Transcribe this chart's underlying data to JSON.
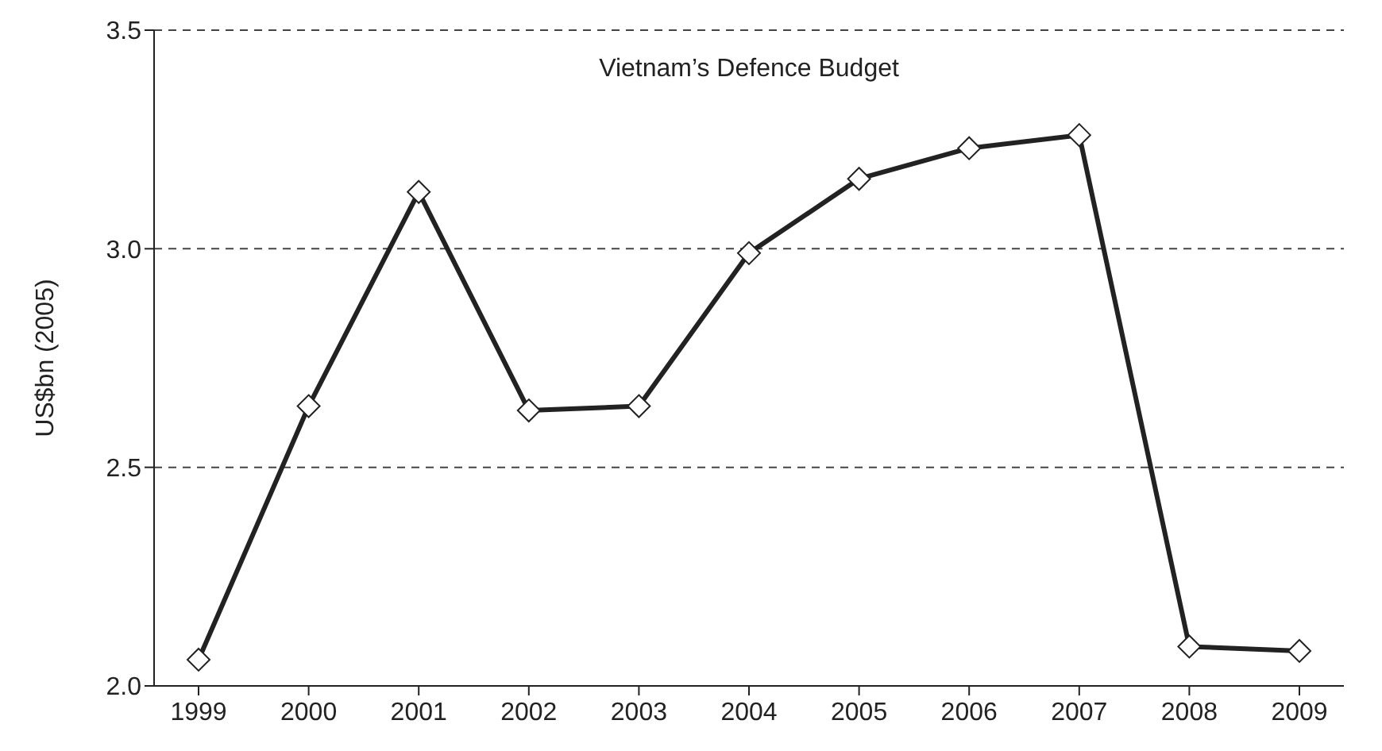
{
  "chart_data": {
    "type": "line",
    "title": "Vietnam’s Defence Budget",
    "ylabel": "US$bn (2005)",
    "categories": [
      "1999",
      "2000",
      "2001",
      "2002",
      "2003",
      "2004",
      "2005",
      "2006",
      "2007",
      "2008",
      "2009"
    ],
    "series": [
      {
        "color": "#222222",
        "values": [
          2.06,
          2.64,
          3.13,
          2.63,
          2.64,
          2.99,
          3.16,
          3.23,
          3.26,
          2.09,
          2.08
        ]
      }
    ],
    "ylim": [
      2.0,
      3.5
    ],
    "yticks": [
      {
        "value": 2.0,
        "label": "2.0"
      },
      {
        "value": 2.5,
        "label": "2.5"
      },
      {
        "value": 3.0,
        "label": "3.0"
      },
      {
        "value": 3.5,
        "label": "3.5"
      }
    ],
    "grid": "y",
    "marker": "diamond",
    "line_style": "solid"
  }
}
